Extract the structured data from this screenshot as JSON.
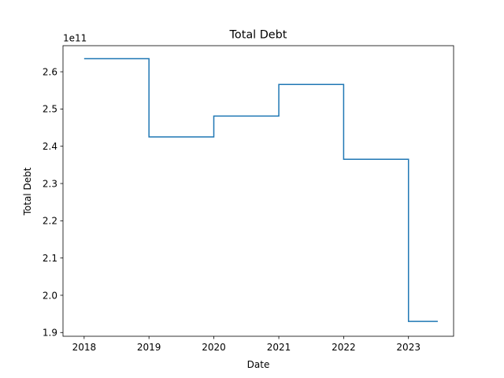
{
  "chart_data": {
    "type": "line",
    "drawstyle": "steps-post",
    "title": "Total Debt",
    "xlabel": "Date",
    "ylabel": "Total Debt",
    "y_offset_label": "1e11",
    "x": [
      "2018-01-01",
      "2019-01-01",
      "2020-01-01",
      "2021-01-01",
      "2022-01-01",
      "2023-01-01",
      "2023-06-15"
    ],
    "series": [
      {
        "color": "#1f77b4",
        "values": [
          263500000000.0,
          242500000000.0,
          248100000000.0,
          256600000000.0,
          236500000000.0,
          193000000000.0,
          193000000000.0
        ]
      }
    ],
    "xlim": [
      "2017-09-04",
      "2023-09-12"
    ],
    "ylim": [
      189000000000.0,
      267000000000.0
    ],
    "x_ticks": [
      "2018-01-01",
      "2019-01-01",
      "2020-01-01",
      "2021-01-01",
      "2022-01-01",
      "2023-01-01"
    ],
    "x_tick_labels": [
      "2018",
      "2019",
      "2020",
      "2021",
      "2022",
      "2023"
    ],
    "y_ticks": [
      190000000000.0,
      200000000000.0,
      210000000000.0,
      220000000000.0,
      230000000000.0,
      240000000000.0,
      250000000000.0,
      260000000000.0
    ],
    "y_tick_labels": [
      "1.9",
      "2.0",
      "2.1",
      "2.2",
      "2.3",
      "2.4",
      "2.5",
      "2.6"
    ],
    "grid": false,
    "legend": "none"
  }
}
